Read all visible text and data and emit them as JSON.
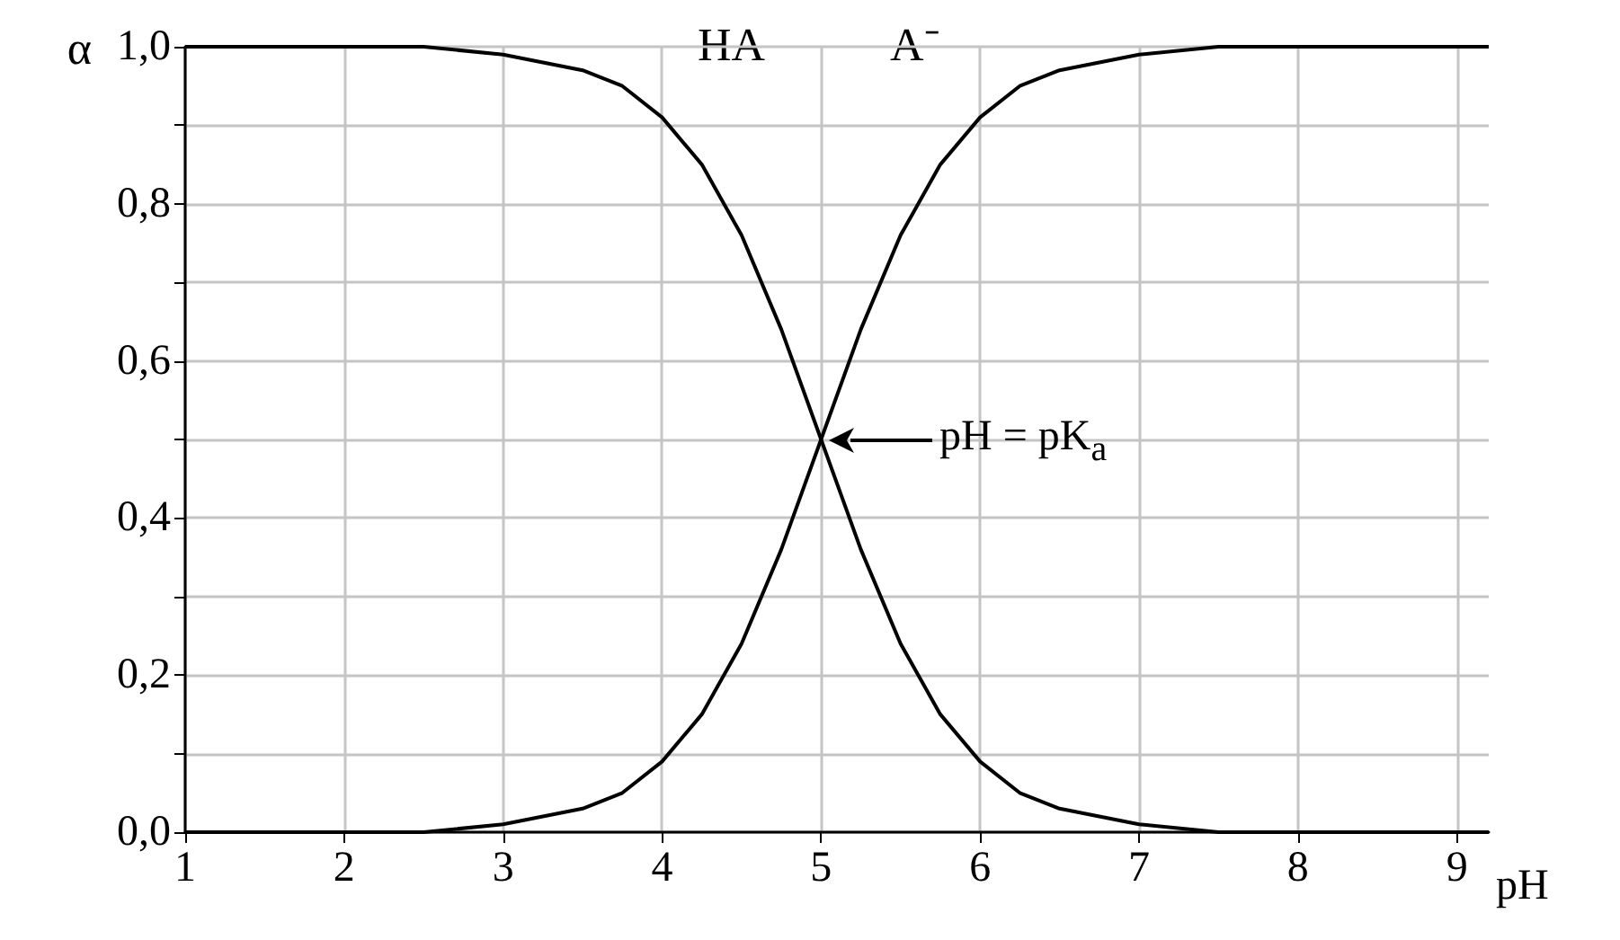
{
  "chart_data": {
    "type": "line",
    "xlabel": "pH",
    "ylabel": "α",
    "x": [
      1,
      2,
      2.5,
      3,
      3.5,
      3.75,
      4,
      4.25,
      4.5,
      4.75,
      5,
      5.25,
      5.5,
      5.75,
      6,
      6.25,
      6.5,
      7,
      7.5,
      8,
      9,
      9.2
    ],
    "series": [
      {
        "name": "HA",
        "color": "#000000",
        "values": [
          1.0,
          1.0,
          1.0,
          0.99,
          0.97,
          0.95,
          0.91,
          0.85,
          0.76,
          0.64,
          0.5,
          0.36,
          0.24,
          0.15,
          0.09,
          0.05,
          0.03,
          0.01,
          0.0,
          0.0,
          0.0,
          0.0
        ]
      },
      {
        "name": "A⁻",
        "color": "#000000",
        "values": [
          0.0,
          0.0,
          0.0,
          0.01,
          0.03,
          0.05,
          0.09,
          0.15,
          0.24,
          0.36,
          0.5,
          0.64,
          0.76,
          0.85,
          0.91,
          0.95,
          0.97,
          0.99,
          1.0,
          1.0,
          1.0,
          1.0
        ]
      }
    ],
    "xlim": [
      1,
      9.2
    ],
    "xticks": [
      1,
      2,
      3,
      4,
      5,
      6,
      7,
      8,
      9
    ],
    "ylim": [
      0,
      1
    ],
    "yticks": [
      {
        "value": 0,
        "label": "0,0"
      },
      {
        "value": 0.1,
        "label": null
      },
      {
        "value": 0.2,
        "label": "0,2"
      },
      {
        "value": 0.3,
        "label": null
      },
      {
        "value": 0.4,
        "label": "0,4"
      },
      {
        "value": 0.5,
        "label": null
      },
      {
        "value": 0.6,
        "label": "0,6"
      },
      {
        "value": 0.7,
        "label": null
      },
      {
        "value": 0.8,
        "label": "0,8"
      },
      {
        "value": 0.9,
        "label": null
      },
      {
        "value": 1,
        "label": "1,0"
      }
    ],
    "annotations": [
      {
        "text": "pH = pK$_{a}$",
        "x": 5,
        "y": 0.5
      }
    ],
    "grid": true,
    "legend": false,
    "marker": "none",
    "line_style": "solid"
  }
}
